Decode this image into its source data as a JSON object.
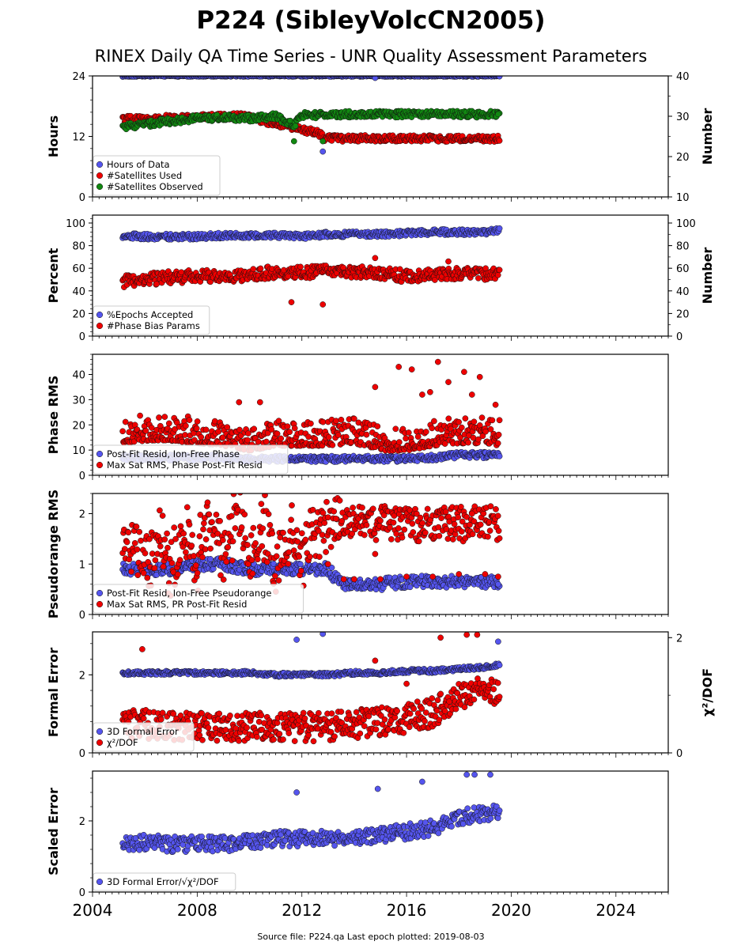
{
  "title": "P224 (SibleyVolcCN2005)",
  "subtitle": "RINEX Daily QA Time Series - UNR Quality Assessment Parameters",
  "footer": "Source file: P224.qa Last epoch plotted: 2019-08-03",
  "colors": {
    "blue": "#5555ee",
    "red": "#ee0000",
    "green": "#118811",
    "edge": "#111111"
  },
  "chart_data": [
    {
      "type": "scatter",
      "ylabel": "Hours",
      "ylabel_right": "Number",
      "xlim": [
        2004,
        2026
      ],
      "ylim": [
        0,
        24
      ],
      "ylim_right": [
        10,
        40
      ],
      "yticks": [
        0,
        12,
        24
      ],
      "yticks_right": [
        10,
        20,
        30,
        40
      ],
      "legend_position": "lower left",
      "series": [
        {
          "name": "Hours of Data",
          "color": "#5555ee",
          "axis": "left",
          "points": [
            [
              2005.2,
              24
            ],
            [
              2006,
              24
            ],
            [
              2007,
              24
            ],
            [
              2008,
              24
            ],
            [
              2009,
              24
            ],
            [
              2010,
              24
            ],
            [
              2011,
              24
            ],
            [
              2012,
              24
            ],
            [
              2013,
              24
            ],
            [
              2014,
              24
            ],
            [
              2015,
              24
            ],
            [
              2016,
              24
            ],
            [
              2017,
              24
            ],
            [
              2018,
              24
            ],
            [
              2019,
              24
            ],
            [
              2019.5,
              24
            ],
            [
              2012.8,
              9
            ],
            [
              2014.8,
              23.6
            ]
          ]
        },
        {
          "name": "#Satellites Used",
          "color": "#ee0000",
          "axis": "right",
          "points": [
            [
              2005.4,
              29.3
            ],
            [
              2012.8,
              25.5
            ],
            [
              2012.8,
              24.5
            ],
            [
              2009.8,
              30
            ]
          ]
        },
        {
          "name": "#Satellites Observed",
          "color": "#118811",
          "axis": "right",
          "points": [
            [
              2005.2,
              27.5
            ],
            [
              2006,
              28
            ],
            [
              2007,
              28.8
            ],
            [
              2008,
              29.5
            ],
            [
              2009,
              29.7
            ],
            [
              2010,
              29.5
            ],
            [
              2011,
              30
            ],
            [
              2011.7,
              27.8
            ],
            [
              2012,
              30.3
            ],
            [
              2013,
              30.3
            ],
            [
              2014,
              30.5
            ],
            [
              2015,
              30.5
            ],
            [
              2016,
              30.5
            ],
            [
              2017,
              30.5
            ],
            [
              2018,
              30.5
            ],
            [
              2019,
              30.5
            ],
            [
              2019.5,
              30.5
            ],
            [
              2011.7,
              23.8
            ],
            [
              2012.8,
              23.8
            ]
          ]
        }
      ]
    },
    {
      "type": "scatter",
      "ylabel": "Percent",
      "ylabel_right": "Number",
      "xlim": [
        2004,
        2026
      ],
      "ylim": [
        0,
        107
      ],
      "ylim_right": [
        0,
        107
      ],
      "yticks": [
        0,
        20,
        40,
        60,
        80,
        100
      ],
      "yticks_right": [
        0,
        20,
        40,
        60,
        80,
        100
      ],
      "legend_position": "lower left",
      "series": [
        {
          "name": "%Epochs Accepted",
          "color": "#5555ee",
          "axis": "left",
          "points": [
            [
              2005.2,
              89
            ],
            [
              2006,
              88
            ],
            [
              2007,
              88
            ],
            [
              2008,
              88
            ],
            [
              2009,
              89
            ],
            [
              2010,
              89
            ],
            [
              2011,
              89
            ],
            [
              2012,
              88
            ],
            [
              2013,
              90
            ],
            [
              2014,
              90
            ],
            [
              2015,
              90
            ],
            [
              2016,
              91
            ],
            [
              2017,
              92
            ],
            [
              2018,
              92
            ],
            [
              2019,
              92
            ],
            [
              2019.5,
              93
            ]
          ]
        },
        {
          "name": "#Phase Bias Params",
          "color": "#ee0000",
          "axis": "right",
          "points": [
            [
              2005.2,
              48
            ],
            [
              2006,
              50
            ],
            [
              2007,
              52
            ],
            [
              2008,
              53
            ],
            [
              2009,
              53
            ],
            [
              2010,
              54
            ],
            [
              2011,
              57
            ],
            [
              2012,
              56
            ],
            [
              2013,
              57
            ],
            [
              2014,
              57
            ],
            [
              2015,
              56
            ],
            [
              2016,
              53
            ],
            [
              2017,
              55
            ],
            [
              2018,
              55
            ],
            [
              2019,
              55
            ],
            [
              2019.5,
              56
            ],
            [
              2011.6,
              30
            ],
            [
              2012.8,
              28
            ],
            [
              2014.8,
              69
            ],
            [
              2017.6,
              66
            ]
          ]
        }
      ]
    },
    {
      "type": "scatter",
      "ylabel": "Phase RMS",
      "xlim": [
        2004,
        2026
      ],
      "ylim": [
        0,
        48
      ],
      "yticks": [
        0,
        10,
        20,
        30,
        40
      ],
      "legend_position": "lower left",
      "series": [
        {
          "name": "Post-Fit Resid, Ion-Free Phase",
          "color": "#5555ee",
          "points": [
            [
              2005.2,
              7
            ],
            [
              2006,
              7
            ],
            [
              2007,
              7
            ],
            [
              2008,
              7
            ],
            [
              2009,
              7
            ],
            [
              2010,
              6.5
            ],
            [
              2011,
              6.5
            ],
            [
              2012,
              6.5
            ],
            [
              2013,
              6.5
            ],
            [
              2014,
              6.5
            ],
            [
              2015,
              6.5
            ],
            [
              2016,
              6.5
            ],
            [
              2017,
              7
            ],
            [
              2018,
              8
            ],
            [
              2019,
              8
            ],
            [
              2019.5,
              8.5
            ]
          ]
        },
        {
          "name": "Max Sat RMS, Phase Post-Fit Resid",
          "color": "#ee0000",
          "points": [
            [
              2005.2,
              14
            ],
            [
              2006,
              15
            ],
            [
              2007,
              15
            ],
            [
              2008,
              14
            ],
            [
              2009,
              13
            ],
            [
              2010,
              11
            ],
            [
              2011,
              13
            ],
            [
              2012,
              13
            ],
            [
              2013,
              13
            ],
            [
              2014,
              14
            ],
            [
              2015,
              11
            ],
            [
              2016,
              11
            ],
            [
              2017,
              13
            ],
            [
              2018,
              14
            ],
            [
              2019,
              14
            ],
            [
              2019.5,
              13
            ],
            [
              2009.6,
              29
            ],
            [
              2010.4,
              29
            ],
            [
              2014.8,
              35
            ],
            [
              2015.7,
              43
            ],
            [
              2016.2,
              42
            ],
            [
              2016.6,
              32
            ],
            [
              2016.9,
              33
            ],
            [
              2017.2,
              45
            ],
            [
              2017.6,
              37
            ],
            [
              2018.2,
              41
            ],
            [
              2018.8,
              39
            ],
            [
              2018.5,
              32
            ],
            [
              2019.4,
              28
            ]
          ]
        }
      ]
    },
    {
      "type": "scatter",
      "ylabel": "Pseudorange RMS",
      "xlim": [
        2004,
        2026
      ],
      "ylim": [
        0,
        2.4
      ],
      "yticks": [
        0,
        1,
        2
      ],
      "legend_position": "lower left",
      "series": [
        {
          "name": "Post-Fit Resid, Ion-Free Pseudorange",
          "color": "#5555ee",
          "points": [
            [
              2005.2,
              0.9
            ],
            [
              2006,
              0.9
            ],
            [
              2007,
              0.9
            ],
            [
              2008,
              1.0
            ],
            [
              2009,
              1.0
            ],
            [
              2010,
              0.9
            ],
            [
              2011,
              0.9
            ],
            [
              2012,
              0.9
            ],
            [
              2013,
              0.9
            ],
            [
              2013.5,
              0.6
            ],
            [
              2014,
              0.6
            ],
            [
              2015,
              0.6
            ],
            [
              2016,
              0.65
            ],
            [
              2017,
              0.65
            ],
            [
              2018,
              0.65
            ],
            [
              2019,
              0.65
            ],
            [
              2019.5,
              0.6
            ]
          ]
        },
        {
          "name": "Max Sat RMS, PR Post-Fit Resid",
          "color": "#ee0000",
          "points": [
            [
              2005.2,
              1.1
            ],
            [
              2005.6,
              1.6
            ],
            [
              2006,
              0.8
            ],
            [
              2006.6,
              1.5
            ],
            [
              2007,
              0.9
            ],
            [
              2007.6,
              1.6
            ],
            [
              2008,
              1.0
            ],
            [
              2008.6,
              2.2
            ],
            [
              2009,
              1.1
            ],
            [
              2009.6,
              2.2
            ],
            [
              2010,
              1.0
            ],
            [
              2010.6,
              1.8
            ],
            [
              2011,
              1.0
            ],
            [
              2011.6,
              1.7
            ],
            [
              2012,
              1.1
            ],
            [
              2012.6,
              1.8
            ],
            [
              2013,
              1.0
            ],
            [
              2013.3,
              1.9
            ],
            [
              2013.6,
              0.7
            ],
            [
              2014,
              0.7
            ],
            [
              2015,
              0.7
            ],
            [
              2016,
              0.75
            ],
            [
              2017,
              0.75
            ],
            [
              2018,
              0.8
            ],
            [
              2019,
              0.8
            ],
            [
              2019.5,
              0.75
            ],
            [
              2014.8,
              1.2
            ],
            [
              2018.5,
              2.0
            ]
          ]
        }
      ]
    },
    {
      "type": "scatter",
      "ylabel": "Formal Error",
      "ylabel_right": "χ²/DOF",
      "xlim": [
        2004,
        2026
      ],
      "ylim": [
        0,
        3.1
      ],
      "ylim_right": [
        0,
        2.1
      ],
      "yticks": [
        0,
        2
      ],
      "yticks_right": [
        0,
        2
      ],
      "legend_position": "lower left",
      "series": [
        {
          "name": "3D Formal Error",
          "color": "#5555ee",
          "axis": "left",
          "points": [
            [
              2005.2,
              2.05
            ],
            [
              2006,
              2.05
            ],
            [
              2007,
              2.05
            ],
            [
              2008,
              2.05
            ],
            [
              2009,
              2.05
            ],
            [
              2010,
              2.05
            ],
            [
              2011,
              2.0
            ],
            [
              2012,
              2.0
            ],
            [
              2013,
              2.0
            ],
            [
              2014,
              2.05
            ],
            [
              2015,
              2.05
            ],
            [
              2016,
              2.1
            ],
            [
              2017,
              2.1
            ],
            [
              2018,
              2.15
            ],
            [
              2019,
              2.2
            ],
            [
              2019.5,
              2.25
            ],
            [
              2011.8,
              2.9
            ],
            [
              2012.8,
              3.05
            ],
            [
              2019.5,
              2.85
            ]
          ]
        },
        {
          "name": "χ²/DOF",
          "color": "#ee0000",
          "axis": "right",
          "points": [
            [
              2005.2,
              0.5
            ],
            [
              2006,
              0.5
            ],
            [
              2007,
              0.45
            ],
            [
              2008,
              0.45
            ],
            [
              2009,
              0.45
            ],
            [
              2010,
              0.45
            ],
            [
              2011,
              0.45
            ],
            [
              2012,
              0.45
            ],
            [
              2013,
              0.45
            ],
            [
              2014,
              0.5
            ],
            [
              2015,
              0.55
            ],
            [
              2016,
              0.6
            ],
            [
              2017,
              0.7
            ],
            [
              2018,
              1.0
            ],
            [
              2019,
              1.1
            ],
            [
              2019.5,
              1.05
            ],
            [
              2005.9,
              1.8
            ],
            [
              2014.8,
              1.6
            ],
            [
              2017.3,
              2.0
            ],
            [
              2018.3,
              2.05
            ],
            [
              2018.7,
              2.05
            ],
            [
              2016,
              1.2
            ]
          ]
        }
      ]
    },
    {
      "type": "scatter",
      "ylabel": "Scaled Error",
      "xlim": [
        2004,
        2026
      ],
      "ylim": [
        0,
        3.4
      ],
      "yticks": [
        0,
        2
      ],
      "legend_position": "lower left",
      "series": [
        {
          "name": "3D Formal Error/√χ²/DOF",
          "color": "#5555ee",
          "points": [
            [
              2005.2,
              1.4
            ],
            [
              2006,
              1.4
            ],
            [
              2007,
              1.35
            ],
            [
              2008,
              1.35
            ],
            [
              2009,
              1.35
            ],
            [
              2010,
              1.4
            ],
            [
              2011,
              1.5
            ],
            [
              2012,
              1.5
            ],
            [
              2013,
              1.5
            ],
            [
              2014,
              1.55
            ],
            [
              2015,
              1.6
            ],
            [
              2016,
              1.7
            ],
            [
              2017,
              1.8
            ],
            [
              2018,
              2.1
            ],
            [
              2019,
              2.2
            ],
            [
              2019.5,
              2.3
            ],
            [
              2011.8,
              2.8
            ],
            [
              2014.9,
              2.9
            ],
            [
              2016.6,
              3.1
            ],
            [
              2018.3,
              3.3
            ],
            [
              2018.6,
              3.3
            ],
            [
              2019.2,
              3.3
            ]
          ]
        }
      ]
    }
  ],
  "x_tick_labels": [
    "2004",
    "2008",
    "2012",
    "2016",
    "2020",
    "2024"
  ]
}
